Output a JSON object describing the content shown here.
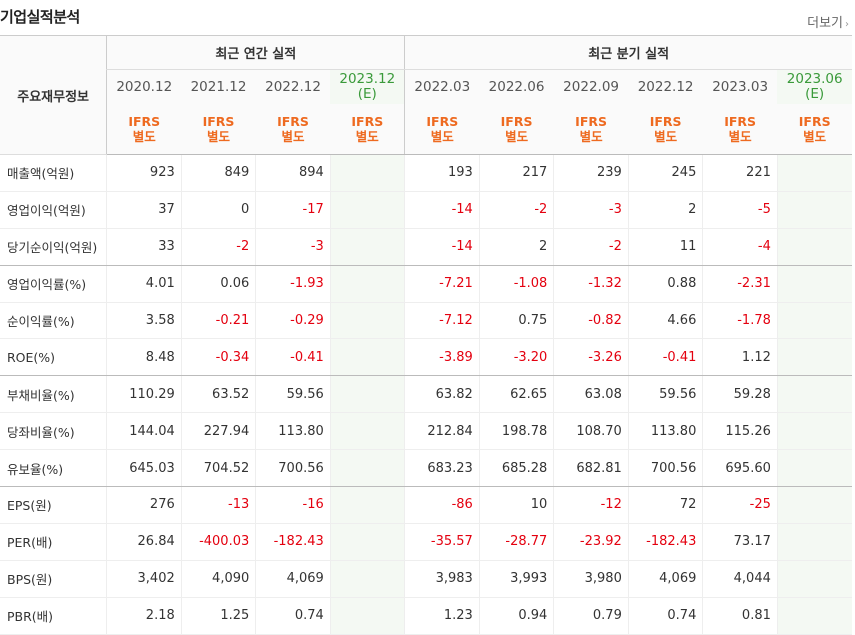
{
  "title": "기업실적분석",
  "more_label": "더보기",
  "header": {
    "row_label": "주요재무정보",
    "annual_group": "최근 연간 실적",
    "quarter_group": "최근 분기 실적",
    "periods": [
      {
        "date": "2020.12",
        "est": "",
        "basis1": "IFRS",
        "basis2": "별도"
      },
      {
        "date": "2021.12",
        "est": "",
        "basis1": "IFRS",
        "basis2": "별도"
      },
      {
        "date": "2022.12",
        "est": "",
        "basis1": "IFRS",
        "basis2": "별도"
      },
      {
        "date": "2023.12",
        "est": "(E)",
        "basis1": "IFRS",
        "basis2": "별도"
      },
      {
        "date": "2022.03",
        "est": "",
        "basis1": "IFRS",
        "basis2": "별도"
      },
      {
        "date": "2022.06",
        "est": "",
        "basis1": "IFRS",
        "basis2": "별도"
      },
      {
        "date": "2022.09",
        "est": "",
        "basis1": "IFRS",
        "basis2": "별도"
      },
      {
        "date": "2022.12",
        "est": "",
        "basis1": "IFRS",
        "basis2": "별도"
      },
      {
        "date": "2023.03",
        "est": "",
        "basis1": "IFRS",
        "basis2": "별도"
      },
      {
        "date": "2023.06",
        "est": "(E)",
        "basis1": "IFRS",
        "basis2": "별도"
      }
    ]
  },
  "rows": [
    {
      "label": "매출액(억원)",
      "values": [
        "923",
        "849",
        "894",
        "",
        "193",
        "217",
        "239",
        "245",
        "221",
        ""
      ]
    },
    {
      "label": "영업이익(억원)",
      "values": [
        "37",
        "0",
        "-17",
        "",
        "-14",
        "-2",
        "-3",
        "2",
        "-5",
        ""
      ]
    },
    {
      "label": "당기순이익(억원)",
      "values": [
        "33",
        "-2",
        "-3",
        "",
        "-14",
        "2",
        "-2",
        "11",
        "-4",
        ""
      ]
    },
    {
      "label": "영업이익률(%)",
      "values": [
        "4.01",
        "0.06",
        "-1.93",
        "",
        "-7.21",
        "-1.08",
        "-1.32",
        "0.88",
        "-2.31",
        ""
      ]
    },
    {
      "label": "순이익률(%)",
      "values": [
        "3.58",
        "-0.21",
        "-0.29",
        "",
        "-7.12",
        "0.75",
        "-0.82",
        "4.66",
        "-1.78",
        ""
      ]
    },
    {
      "label": "ROE(%)",
      "values": [
        "8.48",
        "-0.34",
        "-0.41",
        "",
        "-3.89",
        "-3.20",
        "-3.26",
        "-0.41",
        "1.12",
        ""
      ]
    },
    {
      "label": "부채비율(%)",
      "values": [
        "110.29",
        "63.52",
        "59.56",
        "",
        "63.82",
        "62.65",
        "63.08",
        "59.56",
        "59.28",
        ""
      ]
    },
    {
      "label": "당좌비율(%)",
      "values": [
        "144.04",
        "227.94",
        "113.80",
        "",
        "212.84",
        "198.78",
        "108.70",
        "113.80",
        "115.26",
        ""
      ]
    },
    {
      "label": "유보율(%)",
      "values": [
        "645.03",
        "704.52",
        "700.56",
        "",
        "683.23",
        "685.28",
        "682.81",
        "700.56",
        "695.60",
        ""
      ]
    },
    {
      "label": "EPS(원)",
      "values": [
        "276",
        "-13",
        "-16",
        "",
        "-86",
        "10",
        "-12",
        "72",
        "-25",
        ""
      ]
    },
    {
      "label": "PER(배)",
      "values": [
        "26.84",
        "-400.03",
        "-182.43",
        "",
        "-35.57",
        "-28.77",
        "-23.92",
        "-182.43",
        "73.17",
        ""
      ]
    },
    {
      "label": "BPS(원)",
      "values": [
        "3,402",
        "4,090",
        "4,069",
        "",
        "3,983",
        "3,993",
        "3,980",
        "4,069",
        "4,044",
        ""
      ]
    },
    {
      "label": "PBR(배)",
      "values": [
        "2.18",
        "1.25",
        "0.74",
        "",
        "1.23",
        "0.94",
        "0.79",
        "0.74",
        "0.81",
        ""
      ]
    }
  ],
  "group_end_rows": [
    2,
    5,
    8
  ],
  "colors": {
    "negative": "#e4000f",
    "estimate": "#3a9a3a",
    "basis": "#ee6a20"
  }
}
